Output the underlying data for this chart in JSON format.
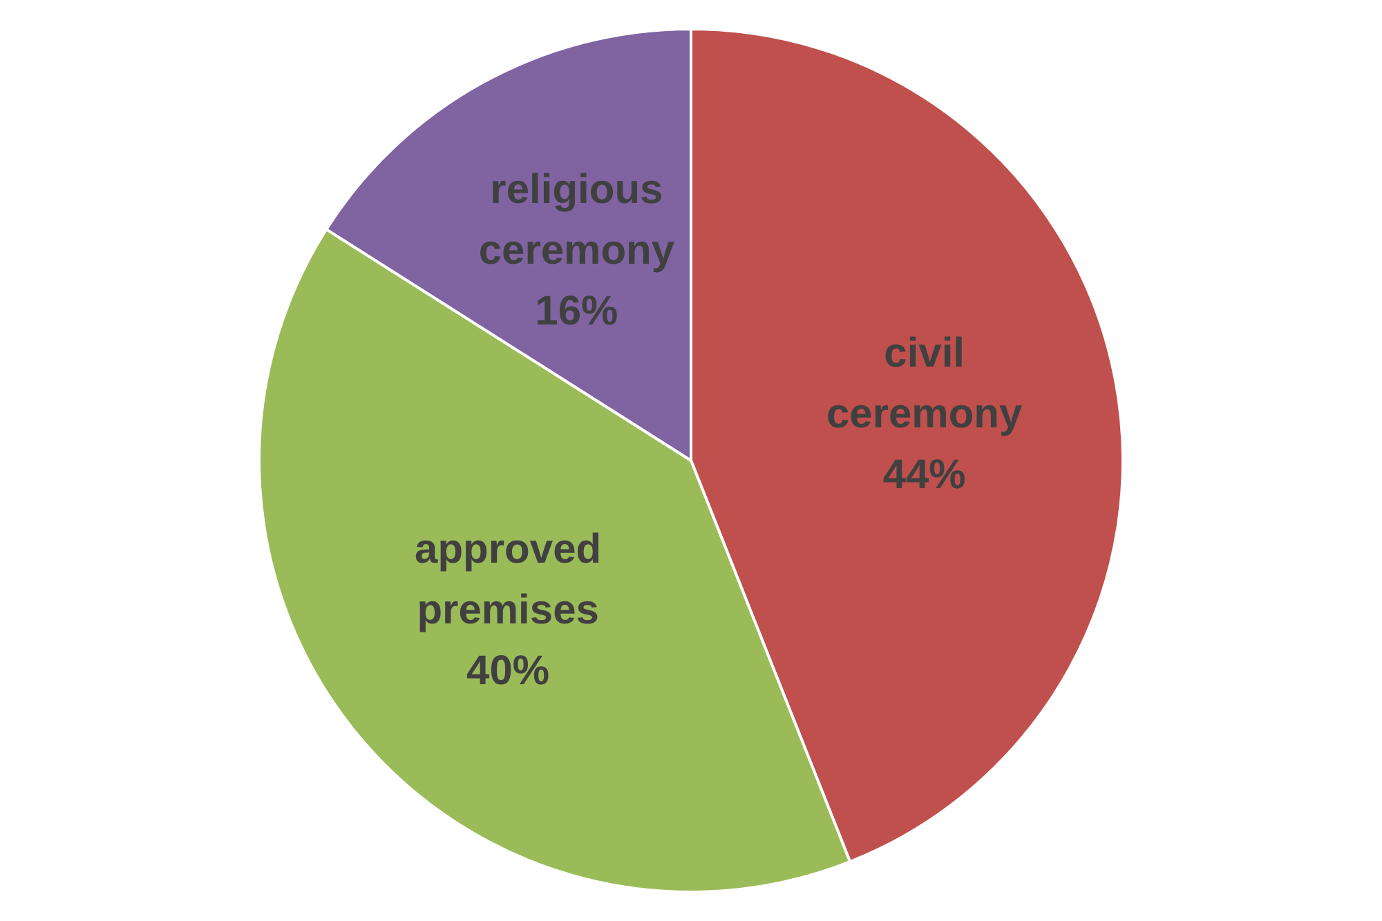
{
  "chart_data": {
    "type": "pie",
    "categories": [
      "civil ceremony",
      "approved premises",
      "religious ceremony"
    ],
    "values": [
      44,
      40,
      16
    ],
    "colors": [
      "#c0504d",
      "#9bbb59",
      "#8064a2"
    ],
    "value_labels": [
      "44%",
      "40%",
      "16%"
    ],
    "legend": false
  }
}
